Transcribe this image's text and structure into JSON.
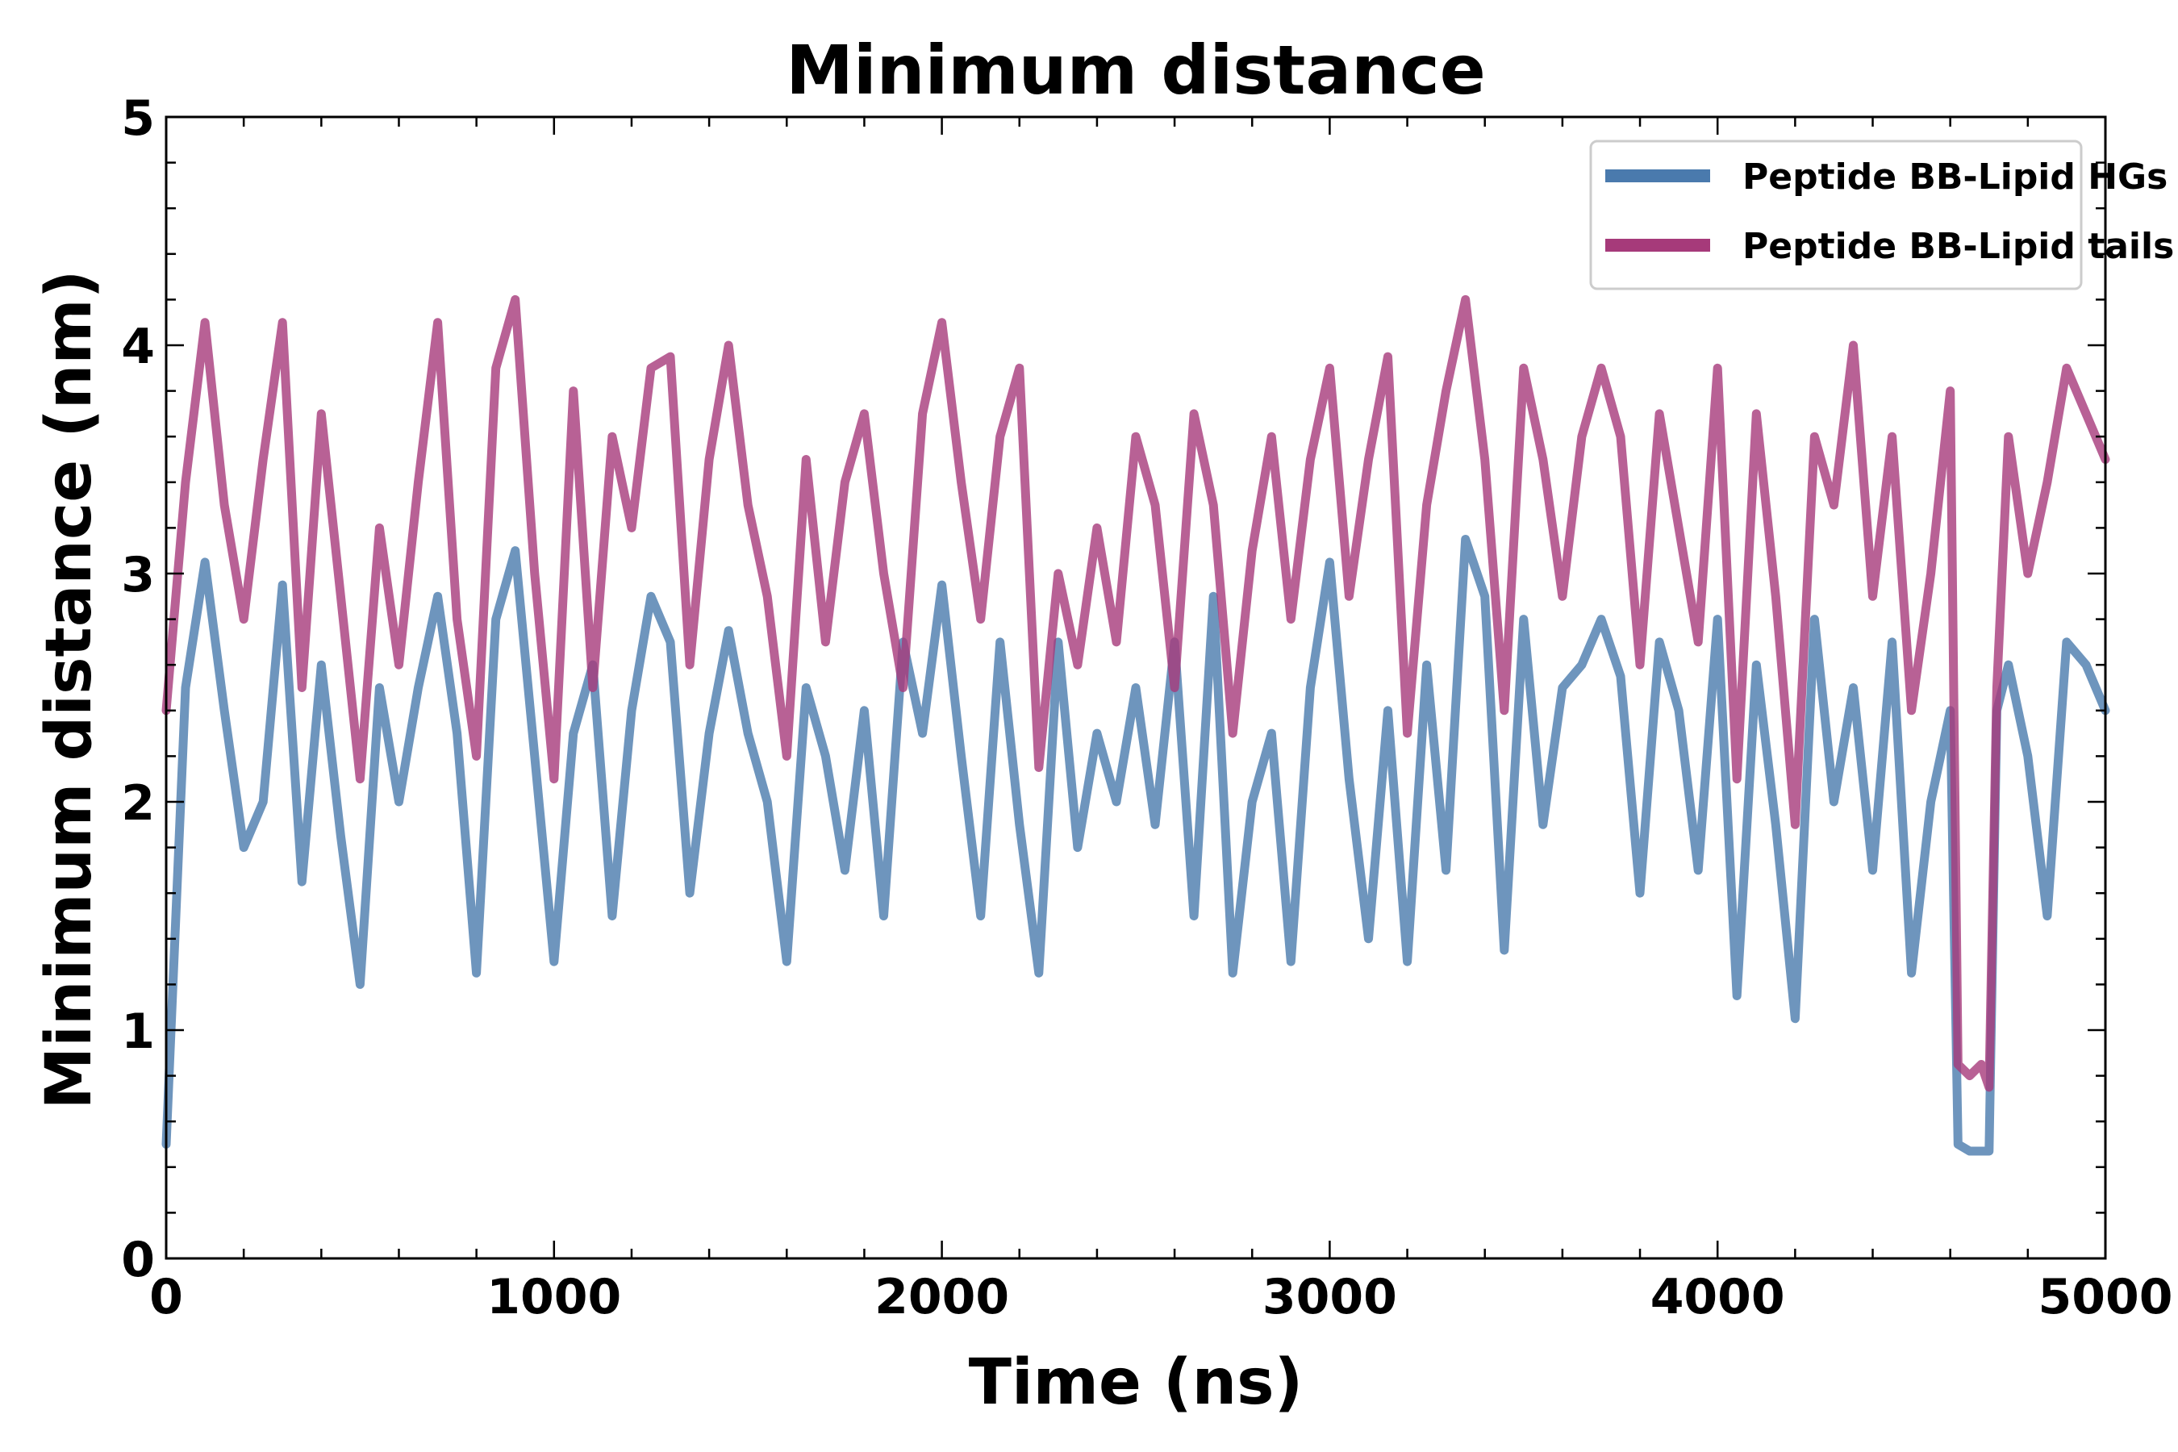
{
  "chart_data": {
    "type": "line",
    "title": "Minimum distance",
    "xlabel": "Time (ns)",
    "ylabel": "Minimum distance (nm)",
    "xlim": [
      0,
      5000
    ],
    "ylim": [
      0,
      5
    ],
    "xticks": [
      "0",
      "1000",
      "2000",
      "3000",
      "4000",
      "5000"
    ],
    "yticks": [
      "0",
      "1",
      "2",
      "3",
      "4",
      "5"
    ],
    "grid": false,
    "legend": "top-right",
    "x": [
      0,
      50,
      100,
      150,
      200,
      250,
      300,
      350,
      400,
      450,
      500,
      550,
      600,
      650,
      700,
      750,
      800,
      850,
      900,
      950,
      1000,
      1050,
      1100,
      1150,
      1200,
      1250,
      1300,
      1350,
      1400,
      1450,
      1500,
      1550,
      1600,
      1650,
      1700,
      1750,
      1800,
      1850,
      1900,
      1950,
      2000,
      2050,
      2100,
      2150,
      2200,
      2250,
      2300,
      2350,
      2400,
      2450,
      2500,
      2550,
      2600,
      2650,
      2700,
      2750,
      2800,
      2850,
      2900,
      2950,
      3000,
      3050,
      3100,
      3150,
      3200,
      3250,
      3300,
      3350,
      3400,
      3450,
      3500,
      3550,
      3600,
      3650,
      3700,
      3750,
      3800,
      3850,
      3900,
      3950,
      4000,
      4050,
      4100,
      4150,
      4200,
      4250,
      4300,
      4350,
      4400,
      4450,
      4500,
      4550,
      4600,
      4620,
      4650,
      4680,
      4700,
      4720,
      4750,
      4800,
      4850,
      4900,
      4950,
      5000
    ],
    "series": [
      {
        "name": "Peptide BB-Lipid HGs",
        "color": "#4a7aad",
        "values": [
          0.5,
          2.5,
          3.05,
          2.4,
          1.8,
          2.0,
          2.95,
          1.65,
          2.6,
          1.85,
          1.2,
          2.5,
          2.0,
          2.5,
          2.9,
          2.3,
          1.25,
          2.8,
          3.1,
          2.2,
          1.3,
          2.3,
          2.6,
          1.5,
          2.4,
          2.9,
          2.7,
          1.6,
          2.3,
          2.75,
          2.3,
          2.0,
          1.3,
          2.5,
          2.2,
          1.7,
          2.4,
          1.5,
          2.7,
          2.3,
          2.95,
          2.2,
          1.5,
          2.7,
          1.9,
          1.25,
          2.7,
          1.8,
          2.3,
          2.0,
          2.5,
          1.9,
          2.7,
          1.5,
          2.9,
          1.25,
          2.0,
          2.3,
          1.3,
          2.5,
          3.05,
          2.1,
          1.4,
          2.4,
          1.3,
          2.6,
          1.7,
          3.15,
          2.9,
          1.35,
          2.8,
          1.9,
          2.5,
          2.6,
          2.8,
          2.55,
          1.6,
          2.7,
          2.4,
          1.7,
          2.8,
          1.15,
          2.6,
          1.9,
          1.05,
          2.8,
          2.0,
          2.5,
          1.7,
          2.7,
          1.25,
          2.0,
          2.4,
          0.5,
          0.47,
          0.47,
          0.47,
          2.4,
          2.6,
          2.2,
          1.5,
          2.7,
          2.6,
          2.4
        ]
      },
      {
        "name": "Peptide BB-Lipid tails",
        "color": "#a63a7a",
        "values": [
          2.4,
          3.4,
          4.1,
          3.3,
          2.8,
          3.5,
          4.1,
          2.5,
          3.7,
          2.9,
          2.1,
          3.2,
          2.6,
          3.4,
          4.1,
          2.8,
          2.2,
          3.9,
          4.2,
          3.0,
          2.1,
          3.8,
          2.5,
          3.6,
          3.2,
          3.9,
          3.95,
          2.6,
          3.5,
          4.0,
          3.3,
          2.9,
          2.2,
          3.5,
          2.7,
          3.4,
          3.7,
          3.0,
          2.5,
          3.7,
          4.1,
          3.4,
          2.8,
          3.6,
          3.9,
          2.15,
          3.0,
          2.6,
          3.2,
          2.7,
          3.6,
          3.3,
          2.5,
          3.7,
          3.3,
          2.3,
          3.1,
          3.6,
          2.8,
          3.5,
          3.9,
          2.9,
          3.5,
          3.95,
          2.3,
          3.3,
          3.8,
          4.2,
          3.5,
          2.4,
          3.9,
          3.5,
          2.9,
          3.6,
          3.9,
          3.6,
          2.6,
          3.7,
          3.2,
          2.7,
          3.9,
          2.1,
          3.7,
          2.9,
          1.9,
          3.6,
          3.3,
          4.0,
          2.9,
          3.6,
          2.4,
          3.0,
          3.8,
          0.85,
          0.8,
          0.85,
          0.75,
          2.5,
          3.6,
          3.0,
          3.4,
          3.9,
          3.7,
          3.5
        ]
      }
    ]
  }
}
